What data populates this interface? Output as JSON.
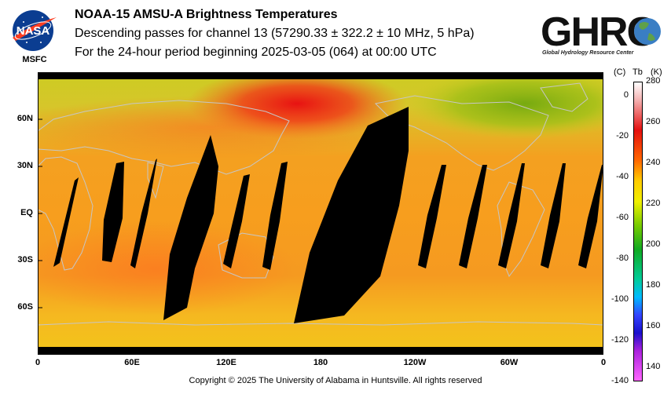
{
  "header": {
    "title": "NOAA-15 AMSU-A Brightness Temperatures",
    "subtitle": "Descending passes for channel 13 (57290.33 ± 322.2 ± 10 MHz, 5 hPa)",
    "period": "For the 24-hour period beginning 2025-03-05 (064) at 00:00 UTC"
  },
  "logos": {
    "nasa_text": "NASA",
    "msfc_text": "MSFC",
    "ghrc_text": "GHRC",
    "ghrc_subtitle": "Global Hydrology Resource Center"
  },
  "map": {
    "lat_labels": [
      "60N",
      "30N",
      "EQ",
      "30S",
      "60S"
    ],
    "lon_labels": [
      "0",
      "60E",
      "120E",
      "180",
      "120W",
      "60W",
      "0"
    ],
    "lat_ticks": [
      60,
      30,
      0,
      -30,
      -60
    ],
    "lon_ticks": [
      0,
      60,
      120,
      180,
      240,
      300,
      360
    ],
    "lon_range": [
      0,
      360
    ],
    "lat_range": [
      -90,
      90
    ],
    "gap_color": "#000000"
  },
  "colorbar": {
    "unit_c": "(C)",
    "unit_tb": "Tb",
    "unit_k": "(K)",
    "kelvin_ticks": [
      "280",
      "260",
      "240",
      "220",
      "200",
      "180",
      "160",
      "140"
    ],
    "celsius_ticks": [
      "0",
      "-20",
      "-40",
      "-60",
      "-80",
      "-100",
      "-120",
      "-140"
    ],
    "k_range": [
      133,
      280
    ]
  },
  "footer": {
    "copyright": "Copyright © 2025 The University of Alabama in Huntsville.  All rights reserved"
  }
}
